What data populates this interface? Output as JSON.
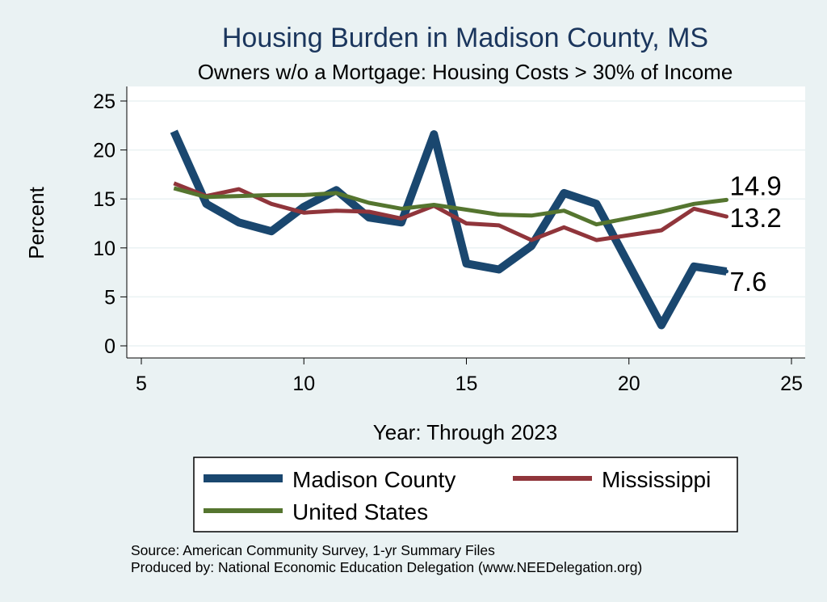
{
  "chart_data": {
    "type": "line",
    "title": "Housing Burden in Madison County, MS",
    "subtitle": "Owners w/o a Mortgage: Housing Costs > 30% of Income",
    "xlabel": "Year: Through 2023",
    "ylabel": "Percent",
    "xlim": [
      5,
      25
    ],
    "ylim": [
      0,
      25
    ],
    "x_ticks": [
      5,
      10,
      15,
      20,
      25
    ],
    "y_ticks": [
      0,
      5,
      10,
      15,
      20,
      25
    ],
    "x_tick_labels": [
      "5",
      "10",
      "15",
      "20",
      "25"
    ],
    "y_tick_labels": [
      "0",
      "5",
      "10",
      "15",
      "20",
      "25"
    ],
    "x": [
      6,
      7,
      8,
      9,
      10,
      11,
      12,
      13,
      14,
      15,
      16,
      17,
      18,
      19,
      21,
      22,
      23
    ],
    "series": [
      {
        "name": "Madison County",
        "color": "#1a476f",
        "values": [
          21.9,
          14.5,
          12.6,
          11.7,
          14.2,
          15.9,
          13.1,
          12.6,
          21.6,
          8.4,
          7.8,
          10.2,
          15.6,
          14.5,
          2.1,
          8.1,
          7.6
        ],
        "end_label": "7.6"
      },
      {
        "name": "Mississippi",
        "color": "#90353b",
        "values": [
          16.6,
          15.3,
          16.0,
          14.5,
          13.6,
          13.8,
          13.7,
          13.0,
          14.3,
          12.5,
          12.3,
          10.8,
          12.1,
          10.8,
          11.8,
          14.0,
          13.2
        ],
        "end_label": "13.2"
      },
      {
        "name": "United States",
        "color": "#55752f",
        "values": [
          16.1,
          15.2,
          15.3,
          15.4,
          15.4,
          15.6,
          14.6,
          14.0,
          14.4,
          13.9,
          13.4,
          13.3,
          13.8,
          12.4,
          13.7,
          14.5,
          14.9
        ],
        "end_label": "14.9"
      }
    ],
    "legend": {
      "entries": [
        "Madison County",
        "Mississippi",
        "United States"
      ],
      "placement": "bottom"
    },
    "grid": true
  },
  "notes": {
    "source": "Source: American Community Survey, 1-yr Summary Files",
    "produced": "Produced by: National Economic Education Delegation (www.NEEDelegation.org)"
  }
}
